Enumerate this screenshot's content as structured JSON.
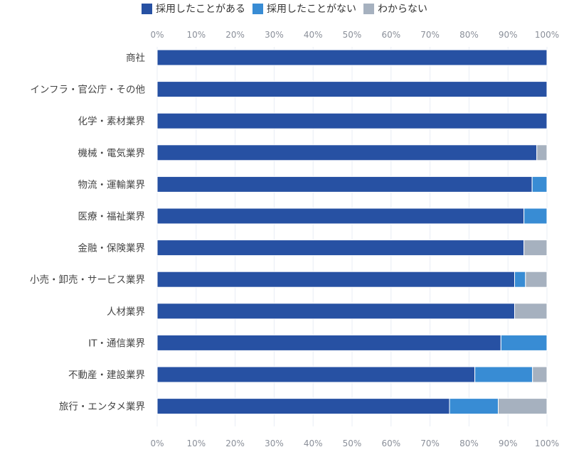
{
  "chart_data": {
    "type": "bar",
    "orientation": "horizontal",
    "stacked": true,
    "title": "",
    "xlabel": "",
    "ylabel": "",
    "xlim": [
      0,
      100
    ],
    "grid": true,
    "legend_position": "top-center",
    "x_ticks": [
      "0%",
      "10%",
      "20%",
      "30%",
      "40%",
      "50%",
      "60%",
      "70%",
      "80%",
      "90%",
      "100%"
    ],
    "categories": [
      "商社",
      "インフラ・官公庁・その他",
      "化学・素材業界",
      "機械・電気業界",
      "物流・運輸業界",
      "医療・福祉業界",
      "金融・保険業界",
      "小売・卸売・サービス業界",
      "人材業界",
      "IT・通信業界",
      "不動産・建設業界",
      "旅行・エンタメ業界"
    ],
    "series": [
      {
        "name": "採用したことがある",
        "color": "#2751a3",
        "values": [
          100,
          100,
          100,
          97.4,
          96.2,
          94.1,
          94.1,
          91.7,
          91.7,
          88.2,
          81.5,
          75.0
        ]
      },
      {
        "name": "採用したことがない",
        "color": "#388cd4",
        "values": [
          0,
          0,
          0,
          0,
          3.8,
          5.9,
          0,
          2.8,
          0,
          11.8,
          14.8,
          12.5
        ]
      },
      {
        "name": "わからない",
        "color": "#a6b1bf",
        "values": [
          0,
          0,
          0,
          2.6,
          0,
          0,
          5.9,
          5.5,
          8.3,
          0,
          3.7,
          12.5
        ]
      }
    ]
  }
}
